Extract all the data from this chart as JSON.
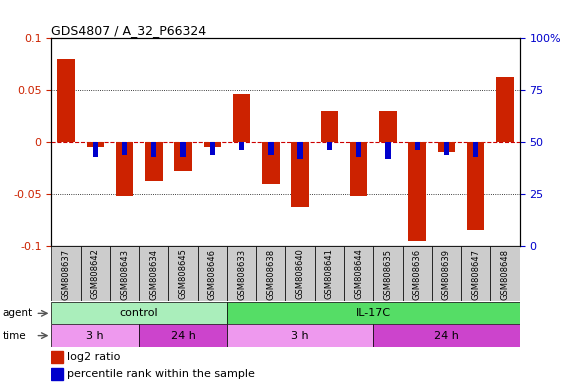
{
  "title": "GDS4807 / A_32_P66324",
  "samples": [
    "GSM808637",
    "GSM808642",
    "GSM808643",
    "GSM808634",
    "GSM808645",
    "GSM808646",
    "GSM808633",
    "GSM808638",
    "GSM808640",
    "GSM808641",
    "GSM808644",
    "GSM808635",
    "GSM808636",
    "GSM808639",
    "GSM808647",
    "GSM808648"
  ],
  "log2_ratio": [
    0.08,
    -0.005,
    -0.052,
    -0.038,
    -0.028,
    -0.005,
    0.046,
    -0.04,
    -0.063,
    0.03,
    -0.052,
    0.03,
    -0.095,
    -0.01,
    -0.085,
    0.063
  ],
  "percentile": [
    50,
    43,
    44,
    43,
    43,
    44,
    46,
    44,
    42,
    46,
    43,
    42,
    46,
    44,
    43,
    50
  ],
  "ylim": [
    -0.1,
    0.1
  ],
  "yticks_left": [
    -0.1,
    -0.05,
    0,
    0.05,
    0.1
  ],
  "yticks_right": [
    0,
    25,
    50,
    75,
    100
  ],
  "agent_groups": [
    {
      "label": "control",
      "start": 0,
      "end": 6,
      "color": "#aaeebb"
    },
    {
      "label": "IL-17C",
      "start": 6,
      "end": 16,
      "color": "#55dd66"
    }
  ],
  "time_groups": [
    {
      "label": "3 h",
      "start": 0,
      "end": 3,
      "color": "#ee99ee"
    },
    {
      "label": "24 h",
      "start": 3,
      "end": 6,
      "color": "#cc44cc"
    },
    {
      "label": "3 h",
      "start": 6,
      "end": 11,
      "color": "#ee99ee"
    },
    {
      "label": "24 h",
      "start": 11,
      "end": 16,
      "color": "#cc44cc"
    }
  ],
  "bar_color": "#cc2200",
  "percentile_color": "#0000cc",
  "background_color": "#ffffff",
  "zero_line_color": "#cc0000",
  "tick_label_color_left": "#cc2200",
  "tick_label_color_right": "#0000cc",
  "sample_bg_color": "#cccccc"
}
